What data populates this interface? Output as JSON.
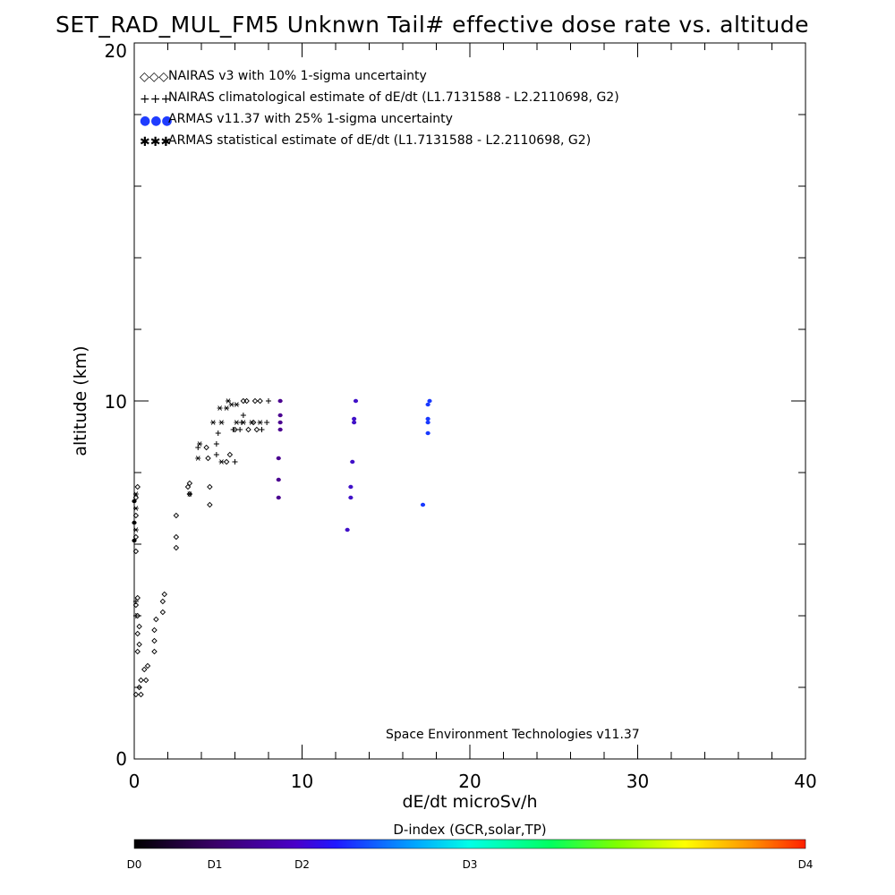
{
  "chart_data": {
    "type": "scatter",
    "title": "SET_RAD_MUL_FM5 Unknwn Tail#  effective dose rate vs. altitude",
    "xlabel": "dE/dt microSv/h",
    "ylabel": "altitude (km)",
    "xlim": [
      0,
      40
    ],
    "ylim": [
      0,
      20
    ],
    "x_ticks": [
      "0",
      "10",
      "20",
      "30",
      "40"
    ],
    "y_ticks": [
      "0",
      "10",
      "20"
    ],
    "grid": false,
    "legend_position": "top-left",
    "credit": "Space Environment Technologies v11.37",
    "colorbar": {
      "title": "D-index (GCR,solar,TP)",
      "labels": [
        {
          "text": "D0",
          "value": 0
        },
        {
          "text": "D1",
          "value": 1
        },
        {
          "text": "D2",
          "value": 2
        },
        {
          "text": "D3",
          "value": 3
        },
        {
          "text": "D4",
          "value": 4
        }
      ]
    },
    "series": [
      {
        "name": "NAIRAS v3 with 10% 1-sigma uncertainty",
        "marker": "diamond",
        "legend_symbol": "◇◇◇",
        "color": "#000000",
        "points": [
          [
            0.1,
            1.8
          ],
          [
            0.4,
            1.8
          ],
          [
            0.3,
            2.0
          ],
          [
            0.4,
            2.2
          ],
          [
            0.7,
            2.2
          ],
          [
            0.6,
            2.5
          ],
          [
            0.8,
            2.6
          ],
          [
            0.2,
            3.0
          ],
          [
            0.3,
            3.2
          ],
          [
            0.2,
            3.5
          ],
          [
            0.3,
            3.7
          ],
          [
            0.2,
            4.0
          ],
          [
            0.1,
            4.3
          ],
          [
            0.2,
            4.5
          ],
          [
            1.2,
            3.0
          ],
          [
            1.2,
            3.3
          ],
          [
            1.2,
            3.6
          ],
          [
            1.3,
            3.9
          ],
          [
            1.7,
            4.1
          ],
          [
            1.7,
            4.4
          ],
          [
            1.8,
            4.6
          ],
          [
            0.1,
            5.8
          ],
          [
            0.1,
            6.2
          ],
          [
            0.1,
            6.8
          ],
          [
            0.1,
            7.3
          ],
          [
            0.2,
            7.6
          ],
          [
            2.5,
            5.9
          ],
          [
            2.5,
            6.2
          ],
          [
            2.5,
            6.8
          ],
          [
            3.3,
            7.4
          ],
          [
            3.2,
            7.6
          ],
          [
            3.3,
            7.7
          ],
          [
            4.5,
            7.1
          ],
          [
            4.5,
            7.6
          ],
          [
            4.4,
            8.4
          ],
          [
            4.3,
            8.7
          ],
          [
            5.5,
            8.3
          ],
          [
            5.7,
            8.5
          ],
          [
            6.0,
            9.2
          ],
          [
            6.8,
            9.2
          ],
          [
            7.3,
            9.2
          ],
          [
            7.1,
            9.4
          ],
          [
            6.5,
            10.0
          ],
          [
            6.7,
            10.0
          ],
          [
            7.2,
            10.0
          ],
          [
            7.5,
            10.0
          ]
        ]
      },
      {
        "name": "NAIRAS climatological estimate of dE/dt (L1.7131588 - L2.2110698, G2)",
        "marker": "plus",
        "legend_symbol": "+++",
        "color": "#000000",
        "points": [
          [
            0.1,
            4.0
          ],
          [
            0.1,
            4.4
          ],
          [
            3.8,
            8.7
          ],
          [
            4.9,
            8.5
          ],
          [
            4.9,
            8.8
          ],
          [
            5.0,
            9.1
          ],
          [
            5.9,
            9.2
          ],
          [
            6.0,
            8.3
          ],
          [
            6.3,
            9.2
          ],
          [
            6.4,
            9.4
          ],
          [
            6.5,
            9.6
          ],
          [
            7.6,
            9.2
          ],
          [
            7.9,
            9.4
          ],
          [
            8.0,
            10.0
          ]
        ]
      },
      {
        "name": "ARMAS v11.37 with 25% 1-sigma uncertainty",
        "marker": "dot",
        "legend_symbol": "●●●",
        "color": "#1f3cff",
        "points": [
          [
            0.0,
            7.2,
            0.1
          ],
          [
            0.0,
            6.6,
            0.1
          ],
          [
            0.0,
            6.1,
            0.1
          ],
          [
            8.7,
            10.0,
            1.0
          ],
          [
            8.7,
            9.6,
            1.0
          ],
          [
            8.7,
            9.4,
            1.0
          ],
          [
            8.7,
            9.2,
            1.0
          ],
          [
            8.6,
            8.4,
            1.0
          ],
          [
            8.6,
            7.8,
            1.0
          ],
          [
            8.6,
            7.3,
            1.0
          ],
          [
            13.2,
            10.0,
            1.5
          ],
          [
            13.1,
            9.5,
            1.5
          ],
          [
            13.1,
            9.4,
            1.5
          ],
          [
            13.0,
            8.3,
            1.5
          ],
          [
            12.9,
            7.6,
            1.5
          ],
          [
            12.9,
            7.3,
            1.5
          ],
          [
            12.7,
            6.4,
            1.5
          ],
          [
            17.6,
            10.0,
            2.0
          ],
          [
            17.5,
            9.9,
            2.0
          ],
          [
            17.5,
            9.5,
            2.0
          ],
          [
            17.5,
            9.4,
            2.0
          ],
          [
            17.5,
            9.1,
            2.0
          ],
          [
            17.2,
            7.1,
            2.0
          ]
        ]
      },
      {
        "name": "ARMAS statistical estimate of dE/dt (L1.7131588 - L2.2110698, G2)",
        "marker": "asterisk",
        "legend_symbol": "✱✱✱",
        "color": "#000000",
        "points": [
          [
            0.1,
            7.4
          ],
          [
            0.1,
            7.0
          ],
          [
            0.1,
            6.4
          ],
          [
            3.3,
            7.4
          ],
          [
            3.8,
            8.4
          ],
          [
            3.9,
            8.8
          ],
          [
            4.7,
            9.4
          ],
          [
            5.2,
            9.4
          ],
          [
            5.1,
            9.8
          ],
          [
            5.5,
            9.8
          ],
          [
            5.6,
            10.0
          ],
          [
            5.8,
            9.9
          ],
          [
            6.1,
            9.4
          ],
          [
            6.5,
            9.4
          ],
          [
            6.1,
            9.9
          ],
          [
            7.0,
            9.4
          ],
          [
            7.5,
            9.4
          ],
          [
            5.2,
            8.3
          ]
        ]
      }
    ]
  }
}
